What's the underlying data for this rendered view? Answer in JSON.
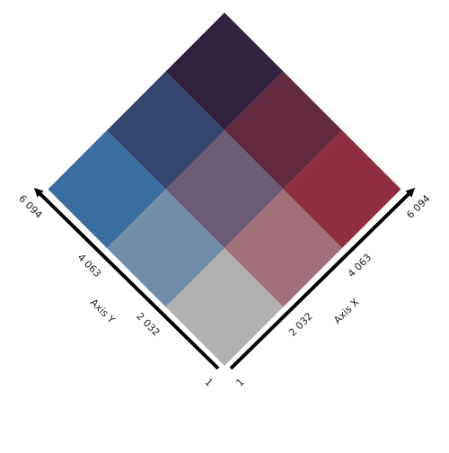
{
  "chart_data": {
    "type": "heatmap",
    "subtype": "bivariate-choropleth-legend",
    "rotation_degrees": 45,
    "x_axis": {
      "label": "Axis X",
      "breaks": [
        1,
        2032,
        4063,
        6094
      ],
      "tick_labels": [
        "1",
        "2 032",
        "4 063",
        "6 094"
      ]
    },
    "y_axis": {
      "label": "Axis Y",
      "breaks": [
        1,
        2032,
        4063,
        6094
      ],
      "tick_labels": [
        "1",
        "2 032",
        "4 063",
        "6 094"
      ]
    },
    "cells": [
      {
        "x_class": 0,
        "y_class": 0,
        "color": "#b1b1b1"
      },
      {
        "x_class": 1,
        "y_class": 0,
        "color": "#a1707a"
      },
      {
        "x_class": 2,
        "y_class": 0,
        "color": "#8e2e3e"
      },
      {
        "x_class": 0,
        "y_class": 1,
        "color": "#728da8"
      },
      {
        "x_class": 1,
        "y_class": 1,
        "color": "#6c5b75"
      },
      {
        "x_class": 2,
        "y_class": 1,
        "color": "#62293f"
      },
      {
        "x_class": 0,
        "y_class": 2,
        "color": "#3a6da2"
      },
      {
        "x_class": 1,
        "y_class": 2,
        "color": "#35466e"
      },
      {
        "x_class": 2,
        "y_class": 2,
        "color": "#33223e"
      }
    ],
    "grid": false
  }
}
